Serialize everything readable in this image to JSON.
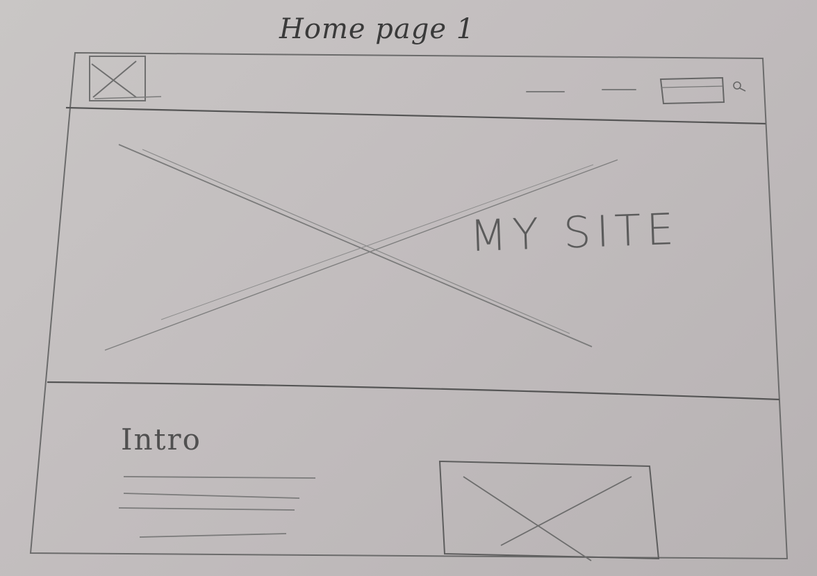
{
  "page": {
    "title": "Home page 1"
  },
  "header": {
    "logo_icon": "image-placeholder-icon",
    "nav_links": [
      "nav-link-1",
      "nav-link-2"
    ],
    "search_icon": "search-icon"
  },
  "hero": {
    "title": "MY SITE",
    "image_icon": "image-placeholder-icon"
  },
  "intro": {
    "heading": "Intro",
    "text_lines": 4,
    "image_icon": "image-placeholder-icon"
  },
  "colors": {
    "paper": "#c4c0c0",
    "pencil": "#6f6f6f"
  }
}
